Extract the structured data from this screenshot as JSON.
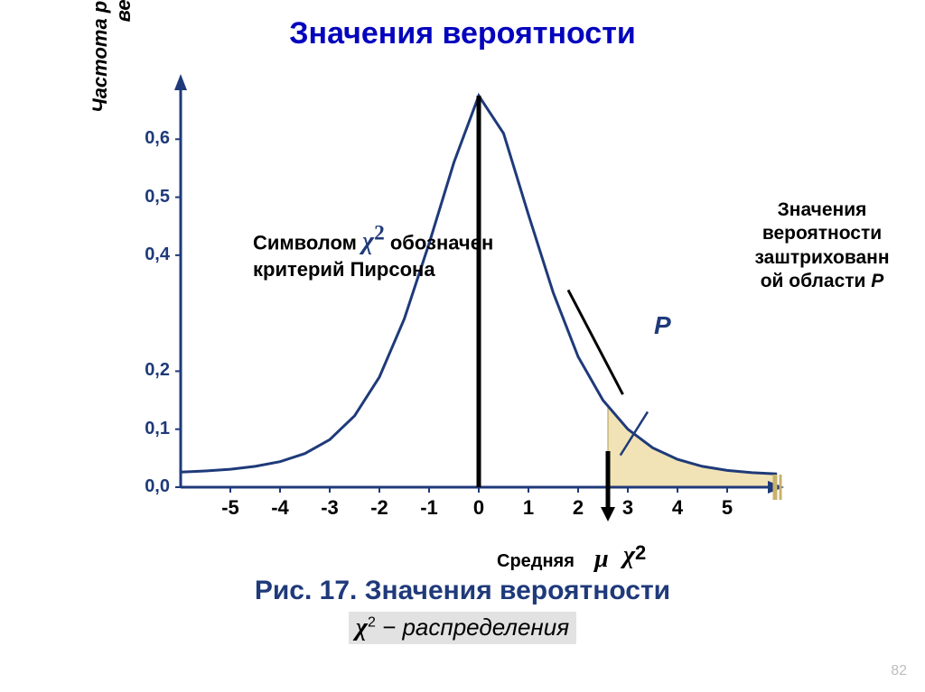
{
  "title": "Значения вероятности",
  "page_number": "82",
  "caption_line1": "Рис. 17. Значения вероятности",
  "caption_line2_prefix": "χ",
  "caption_line2_sup": "2",
  "caption_line2_suffix": " −  распределения",
  "yaxis_label": "Частота результатов случайных величин, отн. ед",
  "xaxis_mid_label": "Средняя",
  "mu_symbol": "μ",
  "chi2_axis_symbol": "χ",
  "chi2_axis_sup": "2",
  "annot_chi_line1a": "Символом ",
  "annot_chi_symbol": "χ",
  "annot_chi_sup": "2",
  "annot_chi_line1b": " обозначен",
  "annot_chi_line2": "критерий Пирсона",
  "side_annot_l1": "Значения",
  "side_annot_l2": "вероятности",
  "side_annot_l3": "заштрихованн",
  "side_annot_l4": "ой области ",
  "side_annot_P": "P",
  "p_label": "P",
  "chart": {
    "type": "line",
    "background_color": "#ffffff",
    "line_color": "#1f3a7a",
    "line_width": 3,
    "axis_color": "#1f3a7a",
    "axis_width": 3,
    "fill_color": "#f1e3b5",
    "fill_border": "#b09a5a",
    "x_ticks": [
      -5,
      -4,
      -3,
      -2,
      -1,
      0,
      1,
      2,
      3,
      4,
      5
    ],
    "y_ticks": [
      0.0,
      0.1,
      0.2,
      0.4,
      0.5,
      0.6
    ],
    "ylim": [
      0.0,
      0.7
    ],
    "xlim": [
      -6,
      6
    ],
    "mu_x": 0,
    "chi2_x": 2.6,
    "curve": [
      [
        -6.0,
        0.026
      ],
      [
        -5.5,
        0.028
      ],
      [
        -5.0,
        0.031
      ],
      [
        -4.5,
        0.036
      ],
      [
        -4.0,
        0.044
      ],
      [
        -3.5,
        0.058
      ],
      [
        -3.0,
        0.082
      ],
      [
        -2.5,
        0.123
      ],
      [
        -2.0,
        0.19
      ],
      [
        -1.5,
        0.29
      ],
      [
        -1.0,
        0.42
      ],
      [
        -0.5,
        0.56
      ],
      [
        0.0,
        0.675
      ],
      [
        0.5,
        0.61
      ],
      [
        1.0,
        0.47
      ],
      [
        1.5,
        0.335
      ],
      [
        2.0,
        0.225
      ],
      [
        2.5,
        0.15
      ],
      [
        3.0,
        0.1
      ],
      [
        3.5,
        0.068
      ],
      [
        4.0,
        0.048
      ],
      [
        4.5,
        0.036
      ],
      [
        5.0,
        0.029
      ],
      [
        5.5,
        0.025
      ],
      [
        6.0,
        0.023
      ]
    ],
    "ytick_labels": [
      "0,0",
      "0,1",
      "0,2",
      "0,4",
      "0,5",
      "0,6"
    ],
    "xtick_labels": [
      "-5",
      "-4",
      "-3",
      "-2",
      "-1",
      "0",
      "1",
      "2",
      "3",
      "4",
      "5"
    ]
  },
  "colors": {
    "title": "#0404be",
    "axis": "#1f3a7a",
    "text": "#000000",
    "pagenum": "#bdbdbd"
  }
}
